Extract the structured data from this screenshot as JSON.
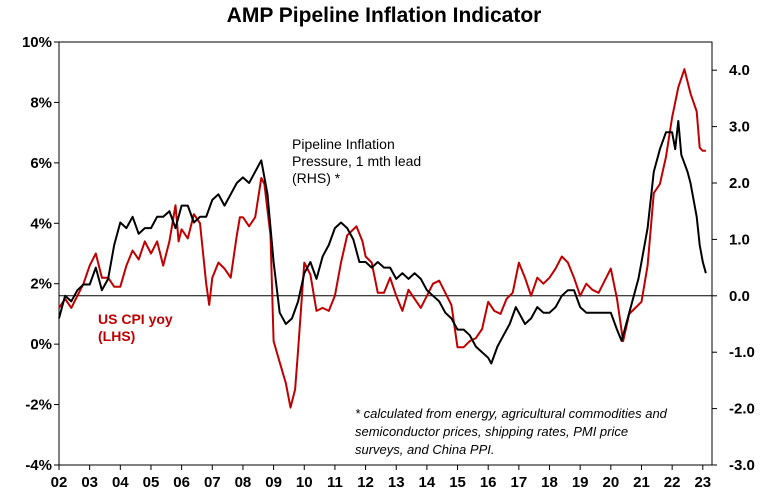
{
  "chart_data": {
    "type": "line",
    "title": "AMP Pipeline Inflation Indicator",
    "x_tick_labels": [
      "02",
      "03",
      "04",
      "05",
      "06",
      "07",
      "08",
      "09",
      "10",
      "11",
      "12",
      "13",
      "14",
      "15",
      "16",
      "17",
      "18",
      "19",
      "20",
      "21",
      "22",
      "23"
    ],
    "x_range": [
      2002.0,
      2023.3
    ],
    "y_left": {
      "range": [
        -4,
        10
      ],
      "ticks": [
        -4,
        -2,
        0,
        2,
        4,
        6,
        8,
        10
      ],
      "tick_labels": [
        "-4%",
        "-2%",
        "0%",
        "2%",
        "4%",
        "6%",
        "8%",
        "10%"
      ]
    },
    "y_right": {
      "range": [
        -3.0,
        4.5
      ],
      "ticks": [
        -3.0,
        -2.0,
        -1.0,
        0.0,
        1.0,
        2.0,
        3.0,
        4.0
      ],
      "tick_labels": [
        "-3.0",
        "-2.0",
        "-1.0",
        "0.0",
        "1.0",
        "2.0",
        "3.0",
        "4.0"
      ]
    },
    "series": [
      {
        "name": "US CPI yoy (LHS)",
        "axis": "left",
        "color": "#C00000",
        "points": [
          [
            2002.0,
            1.2
          ],
          [
            2002.2,
            1.5
          ],
          [
            2002.4,
            1.2
          ],
          [
            2002.6,
            1.6
          ],
          [
            2002.8,
            2.0
          ],
          [
            2003.0,
            2.6
          ],
          [
            2003.2,
            3.0
          ],
          [
            2003.4,
            2.2
          ],
          [
            2003.6,
            2.2
          ],
          [
            2003.8,
            1.9
          ],
          [
            2004.0,
            1.9
          ],
          [
            2004.2,
            2.6
          ],
          [
            2004.4,
            3.1
          ],
          [
            2004.6,
            2.8
          ],
          [
            2004.8,
            3.4
          ],
          [
            2005.0,
            3.0
          ],
          [
            2005.2,
            3.4
          ],
          [
            2005.4,
            2.6
          ],
          [
            2005.6,
            3.4
          ],
          [
            2005.8,
            4.6
          ],
          [
            2005.9,
            3.4
          ],
          [
            2006.0,
            3.8
          ],
          [
            2006.2,
            3.5
          ],
          [
            2006.4,
            4.3
          ],
          [
            2006.6,
            4.0
          ],
          [
            2006.8,
            2.0
          ],
          [
            2006.9,
            1.3
          ],
          [
            2007.0,
            2.2
          ],
          [
            2007.2,
            2.7
          ],
          [
            2007.4,
            2.5
          ],
          [
            2007.6,
            2.2
          ],
          [
            2007.8,
            3.6
          ],
          [
            2007.9,
            4.2
          ],
          [
            2008.0,
            4.2
          ],
          [
            2008.2,
            3.9
          ],
          [
            2008.4,
            4.2
          ],
          [
            2008.6,
            5.5
          ],
          [
            2008.7,
            5.3
          ],
          [
            2008.9,
            3.6
          ],
          [
            2009.0,
            0.1
          ],
          [
            2009.2,
            -0.6
          ],
          [
            2009.4,
            -1.3
          ],
          [
            2009.55,
            -2.1
          ],
          [
            2009.7,
            -1.5
          ],
          [
            2009.8,
            -0.2
          ],
          [
            2010.0,
            2.7
          ],
          [
            2010.2,
            2.3
          ],
          [
            2010.4,
            1.1
          ],
          [
            2010.6,
            1.2
          ],
          [
            2010.8,
            1.1
          ],
          [
            2011.0,
            1.6
          ],
          [
            2011.2,
            2.7
          ],
          [
            2011.4,
            3.6
          ],
          [
            2011.7,
            3.9
          ],
          [
            2011.9,
            3.4
          ],
          [
            2012.0,
            2.9
          ],
          [
            2012.2,
            2.7
          ],
          [
            2012.4,
            1.7
          ],
          [
            2012.6,
            1.7
          ],
          [
            2012.8,
            2.2
          ],
          [
            2013.0,
            1.6
          ],
          [
            2013.2,
            1.1
          ],
          [
            2013.4,
            1.8
          ],
          [
            2013.6,
            1.5
          ],
          [
            2013.8,
            1.2
          ],
          [
            2014.0,
            1.6
          ],
          [
            2014.2,
            2.0
          ],
          [
            2014.4,
            2.1
          ],
          [
            2014.6,
            1.7
          ],
          [
            2014.8,
            1.3
          ],
          [
            2015.0,
            -0.1
          ],
          [
            2015.2,
            -0.1
          ],
          [
            2015.4,
            0.1
          ],
          [
            2015.6,
            0.2
          ],
          [
            2015.8,
            0.5
          ],
          [
            2016.0,
            1.4
          ],
          [
            2016.2,
            1.1
          ],
          [
            2016.4,
            1.0
          ],
          [
            2016.6,
            1.5
          ],
          [
            2016.8,
            1.7
          ],
          [
            2017.0,
            2.7
          ],
          [
            2017.2,
            2.2
          ],
          [
            2017.4,
            1.6
          ],
          [
            2017.6,
            2.2
          ],
          [
            2017.8,
            2.0
          ],
          [
            2018.0,
            2.2
          ],
          [
            2018.2,
            2.5
          ],
          [
            2018.4,
            2.9
          ],
          [
            2018.6,
            2.7
          ],
          [
            2018.8,
            2.2
          ],
          [
            2019.0,
            1.6
          ],
          [
            2019.2,
            2.0
          ],
          [
            2019.4,
            1.8
          ],
          [
            2019.6,
            1.7
          ],
          [
            2019.8,
            2.1
          ],
          [
            2020.0,
            2.5
          ],
          [
            2020.2,
            1.5
          ],
          [
            2020.4,
            0.1
          ],
          [
            2020.6,
            1.0
          ],
          [
            2020.8,
            1.2
          ],
          [
            2021.0,
            1.4
          ],
          [
            2021.2,
            2.6
          ],
          [
            2021.4,
            5.0
          ],
          [
            2021.6,
            5.3
          ],
          [
            2021.8,
            6.2
          ],
          [
            2022.0,
            7.5
          ],
          [
            2022.2,
            8.5
          ],
          [
            2022.4,
            9.1
          ],
          [
            2022.6,
            8.3
          ],
          [
            2022.8,
            7.7
          ],
          [
            2022.9,
            6.5
          ],
          [
            2023.0,
            6.4
          ],
          [
            2023.1,
            6.4
          ]
        ]
      },
      {
        "name": "Pipeline Inflation Pressure, 1 mth lead (RHS) *",
        "axis": "right",
        "color": "#000000",
        "points": [
          [
            2002.0,
            -0.4
          ],
          [
            2002.2,
            0.0
          ],
          [
            2002.4,
            -0.1
          ],
          [
            2002.6,
            0.1
          ],
          [
            2002.8,
            0.2
          ],
          [
            2003.0,
            0.2
          ],
          [
            2003.2,
            0.5
          ],
          [
            2003.4,
            0.1
          ],
          [
            2003.6,
            0.3
          ],
          [
            2003.8,
            0.9
          ],
          [
            2004.0,
            1.3
          ],
          [
            2004.2,
            1.2
          ],
          [
            2004.4,
            1.4
          ],
          [
            2004.6,
            1.1
          ],
          [
            2004.8,
            1.2
          ],
          [
            2005.0,
            1.2
          ],
          [
            2005.2,
            1.4
          ],
          [
            2005.4,
            1.4
          ],
          [
            2005.6,
            1.5
          ],
          [
            2005.8,
            1.2
          ],
          [
            2006.0,
            1.6
          ],
          [
            2006.2,
            1.6
          ],
          [
            2006.4,
            1.3
          ],
          [
            2006.6,
            1.4
          ],
          [
            2006.8,
            1.4
          ],
          [
            2007.0,
            1.7
          ],
          [
            2007.2,
            1.8
          ],
          [
            2007.4,
            1.6
          ],
          [
            2007.6,
            1.8
          ],
          [
            2007.8,
            2.0
          ],
          [
            2008.0,
            2.1
          ],
          [
            2008.2,
            2.0
          ],
          [
            2008.4,
            2.2
          ],
          [
            2008.6,
            2.4
          ],
          [
            2008.8,
            1.8
          ],
          [
            2009.0,
            0.6
          ],
          [
            2009.2,
            -0.3
          ],
          [
            2009.4,
            -0.5
          ],
          [
            2009.6,
            -0.4
          ],
          [
            2009.8,
            -0.1
          ],
          [
            2010.0,
            0.4
          ],
          [
            2010.2,
            0.6
          ],
          [
            2010.4,
            0.3
          ],
          [
            2010.6,
            0.7
          ],
          [
            2010.8,
            0.9
          ],
          [
            2011.0,
            1.2
          ],
          [
            2011.2,
            1.3
          ],
          [
            2011.4,
            1.2
          ],
          [
            2011.6,
            1.0
          ],
          [
            2011.8,
            0.6
          ],
          [
            2012.0,
            0.6
          ],
          [
            2012.2,
            0.5
          ],
          [
            2012.4,
            0.6
          ],
          [
            2012.6,
            0.5
          ],
          [
            2012.8,
            0.5
          ],
          [
            2013.0,
            0.3
          ],
          [
            2013.2,
            0.4
          ],
          [
            2013.4,
            0.3
          ],
          [
            2013.6,
            0.4
          ],
          [
            2013.8,
            0.3
          ],
          [
            2014.0,
            0.1
          ],
          [
            2014.2,
            0.0
          ],
          [
            2014.4,
            -0.1
          ],
          [
            2014.6,
            -0.3
          ],
          [
            2014.8,
            -0.4
          ],
          [
            2015.0,
            -0.6
          ],
          [
            2015.2,
            -0.6
          ],
          [
            2015.4,
            -0.7
          ],
          [
            2015.6,
            -0.9
          ],
          [
            2015.8,
            -1.0
          ],
          [
            2016.0,
            -1.1
          ],
          [
            2016.1,
            -1.2
          ],
          [
            2016.3,
            -0.9
          ],
          [
            2016.5,
            -0.7
          ],
          [
            2016.7,
            -0.5
          ],
          [
            2016.9,
            -0.2
          ],
          [
            2017.0,
            -0.3
          ],
          [
            2017.2,
            -0.5
          ],
          [
            2017.4,
            -0.4
          ],
          [
            2017.6,
            -0.2
          ],
          [
            2017.8,
            -0.3
          ],
          [
            2018.0,
            -0.3
          ],
          [
            2018.2,
            -0.2
          ],
          [
            2018.4,
            0.0
          ],
          [
            2018.6,
            0.1
          ],
          [
            2018.8,
            0.1
          ],
          [
            2019.0,
            -0.2
          ],
          [
            2019.2,
            -0.3
          ],
          [
            2019.4,
            -0.3
          ],
          [
            2019.6,
            -0.3
          ],
          [
            2019.8,
            -0.3
          ],
          [
            2020.0,
            -0.3
          ],
          [
            2020.2,
            -0.6
          ],
          [
            2020.35,
            -0.8
          ],
          [
            2020.5,
            -0.5
          ],
          [
            2020.7,
            -0.1
          ],
          [
            2020.9,
            0.3
          ],
          [
            2021.0,
            0.6
          ],
          [
            2021.2,
            1.2
          ],
          [
            2021.4,
            2.2
          ],
          [
            2021.6,
            2.6
          ],
          [
            2021.8,
            2.9
          ],
          [
            2022.0,
            2.9
          ],
          [
            2022.1,
            2.6
          ],
          [
            2022.2,
            3.1
          ],
          [
            2022.3,
            2.5
          ],
          [
            2022.5,
            2.2
          ],
          [
            2022.6,
            2.0
          ],
          [
            2022.8,
            1.4
          ],
          [
            2022.9,
            0.9
          ],
          [
            2023.0,
            0.6
          ],
          [
            2023.1,
            0.4
          ]
        ]
      }
    ],
    "annotations": {
      "rhs_series_label": [
        "Pipeline Inflation",
        "Pressure, 1 mth lead",
        "(RHS) *"
      ],
      "lhs_series_label": [
        "US CPI yoy",
        "(LHS)"
      ],
      "footnote": [
        "* calculated from energy, agricultural commodities and",
        "semiconductor prices, shipping rates, PMI price",
        "surveys, and China PPI."
      ]
    }
  }
}
